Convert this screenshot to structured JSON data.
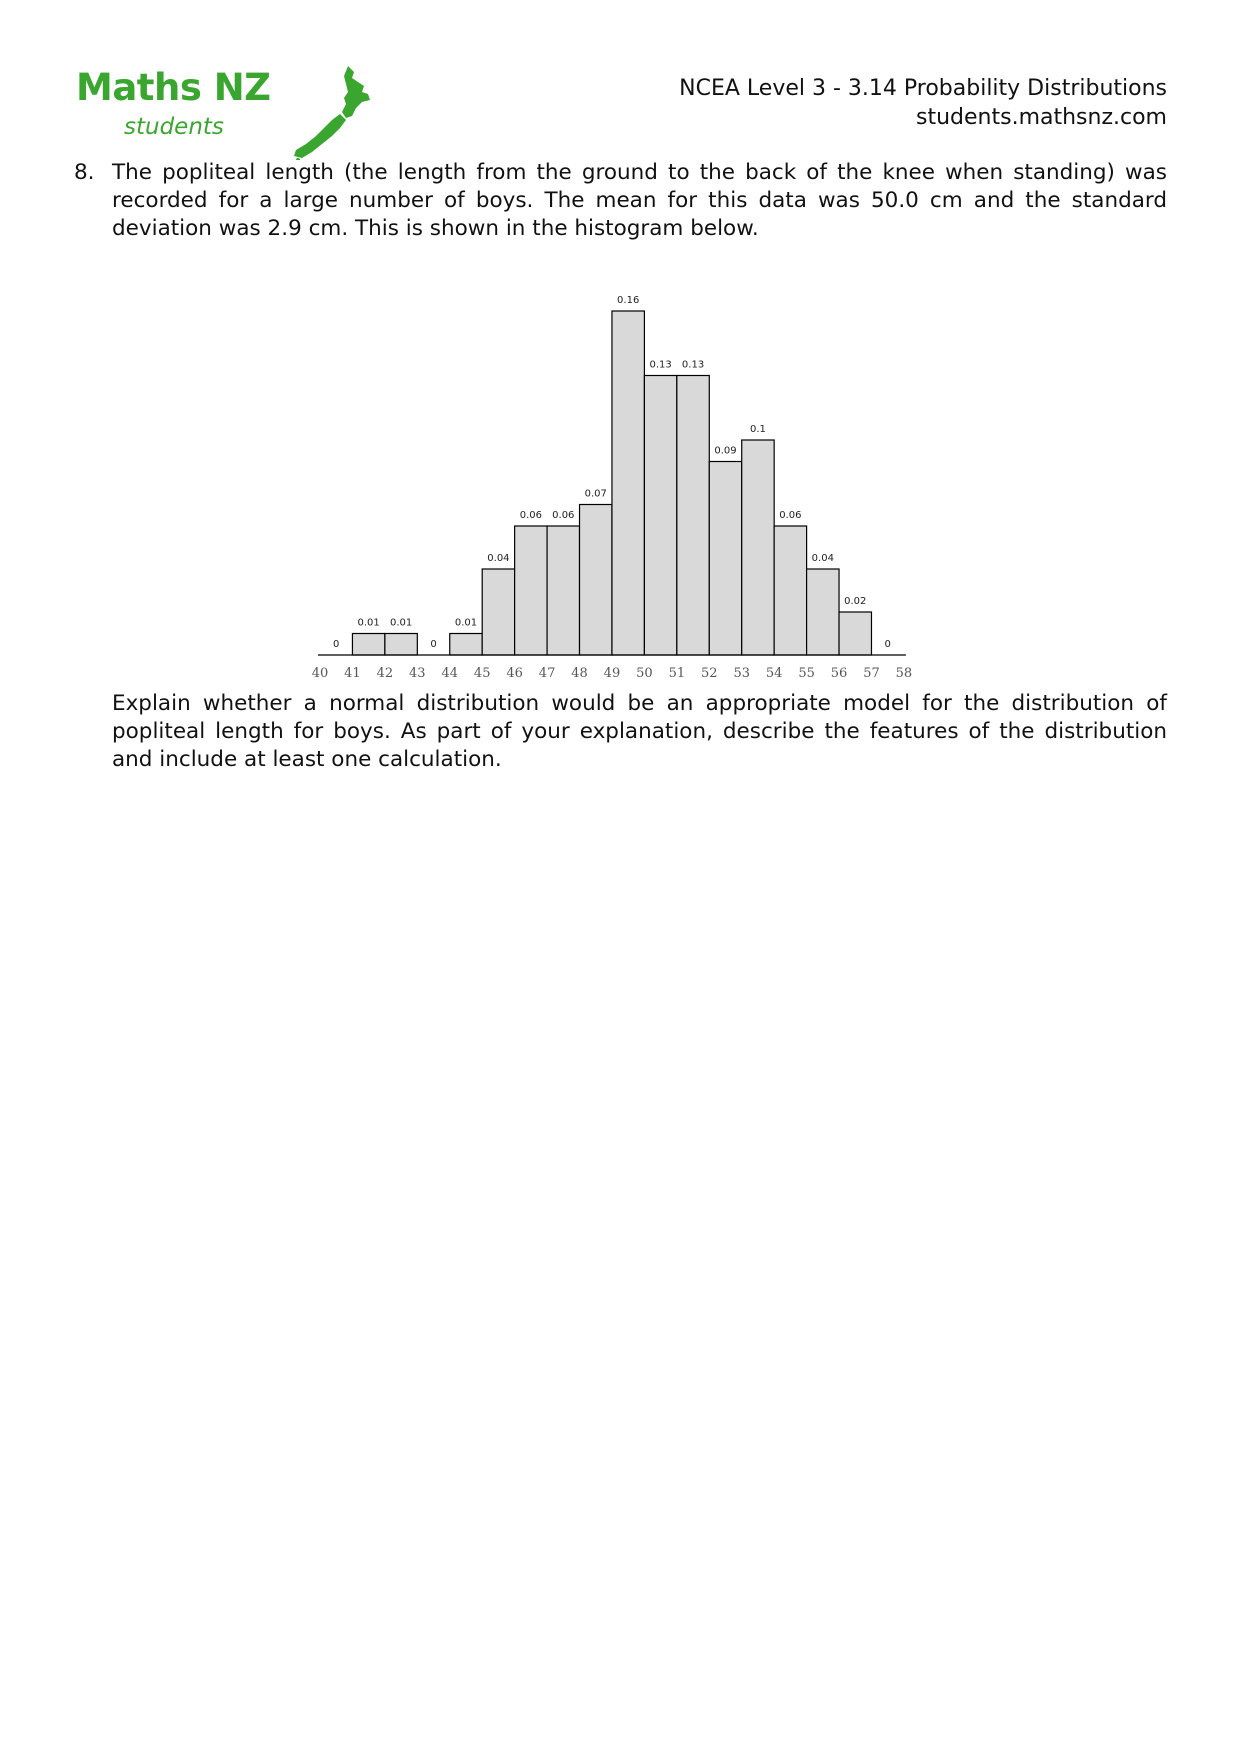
{
  "logo": {
    "main_text": "Maths NZ",
    "sub_text": "students",
    "color": "#3aa62f"
  },
  "header": {
    "title": "NCEA Level 3 - 3.14 Probability Distributions",
    "site": "students.mathsnz.com"
  },
  "question": {
    "number": "8.",
    "text": "The popliteal length (the length from the ground to the back of the knee when standing) was recorded for a large number of boys. The mean for this data was 50.0 cm and the standard deviation was 2.9 cm. This is shown in the histogram below."
  },
  "chart_data": {
    "type": "bar",
    "title": "",
    "xlabel": "",
    "ylabel": "",
    "x_ticks": [
      "40",
      "41",
      "42",
      "43",
      "44",
      "45",
      "46",
      "47",
      "48",
      "49",
      "50",
      "51",
      "52",
      "53",
      "54",
      "55",
      "56",
      "57",
      "58"
    ],
    "bins": [
      {
        "from": 40,
        "to": 41,
        "value": 0,
        "label": "0"
      },
      {
        "from": 41,
        "to": 42,
        "value": 0.01,
        "label": "0.01"
      },
      {
        "from": 42,
        "to": 43,
        "value": 0.01,
        "label": "0.01"
      },
      {
        "from": 43,
        "to": 44,
        "value": 0,
        "label": "0"
      },
      {
        "from": 44,
        "to": 45,
        "value": 0.01,
        "label": "0.01"
      },
      {
        "from": 45,
        "to": 46,
        "value": 0.04,
        "label": "0.04"
      },
      {
        "from": 46,
        "to": 47,
        "value": 0.06,
        "label": "0.06"
      },
      {
        "from": 47,
        "to": 48,
        "value": 0.06,
        "label": "0.06"
      },
      {
        "from": 48,
        "to": 49,
        "value": 0.07,
        "label": "0.07"
      },
      {
        "from": 49,
        "to": 50,
        "value": 0.16,
        "label": "0.16"
      },
      {
        "from": 50,
        "to": 51,
        "value": 0.13,
        "label": "0.13"
      },
      {
        "from": 51,
        "to": 52,
        "value": 0.13,
        "label": "0.13"
      },
      {
        "from": 52,
        "to": 53,
        "value": 0.09,
        "label": "0.09"
      },
      {
        "from": 53,
        "to": 54,
        "value": 0.1,
        "label": "0.1"
      },
      {
        "from": 54,
        "to": 55,
        "value": 0.06,
        "label": "0.06"
      },
      {
        "from": 55,
        "to": 56,
        "value": 0.04,
        "label": "0.04"
      },
      {
        "from": 56,
        "to": 57,
        "value": 0.02,
        "label": "0.02"
      },
      {
        "from": 57,
        "to": 58,
        "value": 0,
        "label": "0"
      }
    ],
    "xlim": [
      40,
      58
    ],
    "ylim": [
      0,
      0.16
    ],
    "grid": false,
    "legend": "none",
    "bar_fill": "#d9d9d9",
    "bar_stroke": "#000000"
  },
  "explanation": {
    "text": "Explain whether a normal distribution would be an appropriate model for the distribution of popliteal length for boys. As part of your explanation, describe the features of the distribution and include at least one calculation."
  }
}
